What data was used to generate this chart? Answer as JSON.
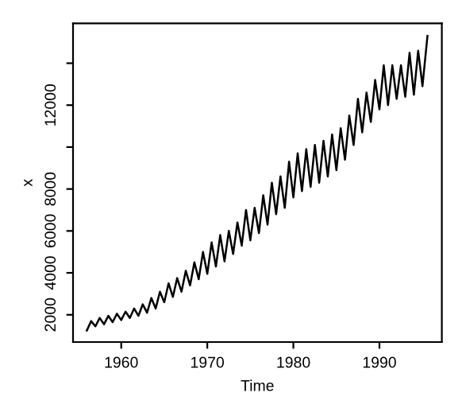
{
  "chart_data": {
    "type": "line",
    "xlabel": "Time",
    "ylabel": "x",
    "x": [
      1956.0,
      1956.5,
      1957.0,
      1957.5,
      1958.0,
      1958.5,
      1959.0,
      1959.5,
      1960.0,
      1960.5,
      1961.0,
      1961.5,
      1962.0,
      1962.5,
      1963.0,
      1963.5,
      1964.0,
      1964.5,
      1965.0,
      1965.5,
      1966.0,
      1966.5,
      1967.0,
      1967.5,
      1968.0,
      1968.5,
      1969.0,
      1969.5,
      1970.0,
      1970.5,
      1971.0,
      1971.5,
      1972.0,
      1972.5,
      1973.0,
      1973.5,
      1974.0,
      1974.5,
      1975.0,
      1975.5,
      1976.0,
      1976.5,
      1977.0,
      1977.5,
      1978.0,
      1978.5,
      1979.0,
      1979.5,
      1980.0,
      1980.5,
      1981.0,
      1981.5,
      1982.0,
      1982.5,
      1983.0,
      1983.5,
      1984.0,
      1984.5,
      1985.0,
      1985.5,
      1986.0,
      1986.5,
      1987.0,
      1987.5,
      1988.0,
      1988.5,
      1989.0,
      1989.5,
      1990.0,
      1990.5,
      1991.0,
      1991.5,
      1992.0,
      1992.5,
      1993.0,
      1993.5,
      1994.0,
      1994.5,
      1995.0,
      1995.58
    ],
    "series": [
      {
        "color": "#000000",
        "values": [
          1250,
          1700,
          1450,
          1850,
          1550,
          1950,
          1650,
          2050,
          1750,
          2150,
          1850,
          2300,
          1950,
          2500,
          2100,
          2800,
          2300,
          3100,
          2600,
          3500,
          2850,
          3750,
          3100,
          4100,
          3400,
          4500,
          3700,
          5000,
          3950,
          5450,
          4300,
          5800,
          4550,
          6000,
          4900,
          6400,
          5300,
          7000,
          5550,
          7100,
          5900,
          7700,
          6300,
          8300,
          6800,
          8600,
          7100,
          9300,
          7600,
          9700,
          7900,
          9900,
          8100,
          10100,
          8300,
          10300,
          8600,
          10600,
          8900,
          10900,
          9400,
          11500,
          10100,
          12300,
          10700,
          12600,
          11200,
          13200,
          11800,
          13900,
          12000,
          13900,
          12300,
          13900,
          12400,
          14500,
          12500,
          14600,
          12900,
          15300
        ]
      }
    ],
    "xlim": [
      1954.4,
      1997.25
    ],
    "xticks": [
      1960,
      1970,
      1980,
      1990
    ],
    "ylim": [
      700,
      15900
    ],
    "yticks": [
      2000,
      4000,
      6000,
      8000,
      {
        "value": 10000,
        "label": null
      },
      12000,
      {
        "value": 14000,
        "label": null
      }
    ],
    "grid": false,
    "legend": false,
    "marker": "none",
    "line_style": "solid"
  }
}
